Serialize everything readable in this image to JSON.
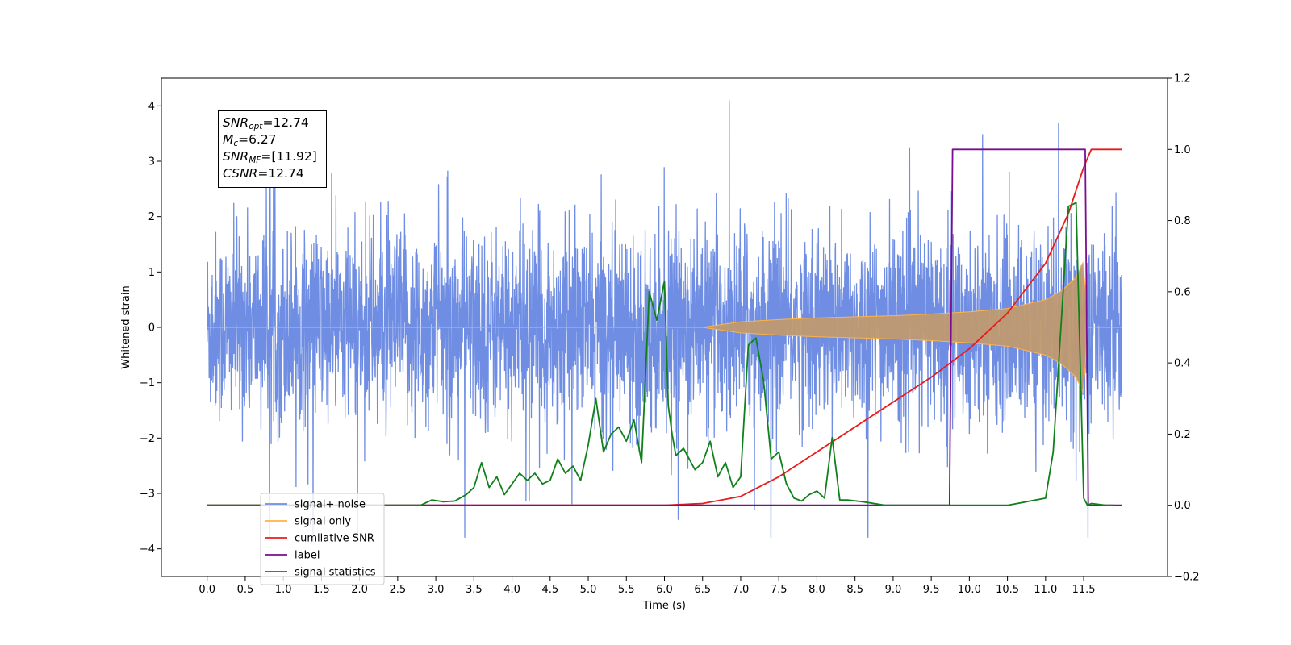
{
  "chart_data": {
    "type": "line",
    "title": "",
    "xlabel": "Time (s)",
    "ylabel": "Whitened strain",
    "y2label": "",
    "xlim": [
      -0.6,
      12.6
    ],
    "ylim": [
      -4.5,
      4.5
    ],
    "y2lim": [
      -0.2,
      1.2
    ],
    "x_ticks": [
      "0.0",
      "0.5",
      "1.0",
      "1.5",
      "2.0",
      "2.5",
      "3.0",
      "3.5",
      "4.0",
      "4.5",
      "5.0",
      "5.5",
      "6.0",
      "6.5",
      "7.0",
      "7.5",
      "8.0",
      "8.5",
      "9.0",
      "9.5",
      "10.0",
      "10.5",
      "11.0",
      "11.5"
    ],
    "y_ticks": [
      "4",
      "3",
      "2",
      "1",
      "0",
      "−1",
      "−2",
      "−3",
      "−4"
    ],
    "y_tick_values": [
      4,
      3,
      2,
      1,
      0,
      -1,
      -2,
      -3,
      -4
    ],
    "y2_ticks": [
      "1.2",
      "1.0",
      "0.8",
      "0.6",
      "0.4",
      "0.2",
      "0.0",
      "−0.2"
    ],
    "y2_tick_values": [
      1.2,
      1.0,
      0.8,
      0.6,
      0.4,
      0.2,
      0.0,
      -0.2
    ],
    "legend_placement": "lower-left",
    "grid": false,
    "series": [
      {
        "name": "signal+ noise",
        "axis": "left",
        "color": "#6f8ee3",
        "description": "noise band approx ±1.5 with spikes to about ±4, x from 0.0 to 12.0",
        "x_range": [
          0.0,
          12.0
        ],
        "y_typical_range": [
          -1.5,
          1.5
        ],
        "y_extremes": [
          -3.8,
          4.1
        ]
      },
      {
        "name": "signal only",
        "axis": "left",
        "color": "#ffb347",
        "description": "chirp near zero growing in amplitude, visible envelope from x≈6.5 to 11.5",
        "envelope_x": [
          6.5,
          7.0,
          7.5,
          8.0,
          8.5,
          9.0,
          9.5,
          10.0,
          10.5,
          11.0,
          11.2,
          11.4,
          11.5,
          11.55
        ],
        "envelope_amplitude": [
          0.0,
          0.1,
          0.14,
          0.17,
          0.19,
          0.21,
          0.24,
          0.28,
          0.34,
          0.5,
          0.65,
          0.9,
          1.2,
          0.0
        ]
      },
      {
        "name": "cumilative SNR",
        "axis": "right",
        "color": "#e81c1c",
        "x": [
          0.0,
          6.0,
          6.5,
          7.0,
          7.5,
          8.0,
          8.5,
          9.0,
          9.5,
          10.0,
          10.5,
          11.0,
          11.3,
          11.5,
          11.6,
          12.0
        ],
        "values": [
          0.0,
          0.0,
          0.005,
          0.025,
          0.08,
          0.15,
          0.22,
          0.29,
          0.36,
          0.44,
          0.54,
          0.68,
          0.82,
          0.95,
          1.0,
          1.0
        ]
      },
      {
        "name": "label",
        "axis": "right",
        "color": "#7b0e8e",
        "x": [
          0.0,
          9.74,
          9.78,
          11.52,
          11.56,
          12.0
        ],
        "values": [
          0.0,
          0.0,
          1.0,
          1.0,
          0.0,
          0.0
        ]
      },
      {
        "name": "signal statistics",
        "axis": "right",
        "color": "#10801a",
        "x": [
          0.0,
          2.8,
          2.95,
          3.1,
          3.25,
          3.4,
          3.5,
          3.6,
          3.7,
          3.8,
          3.9,
          4.0,
          4.1,
          4.2,
          4.3,
          4.4,
          4.5,
          4.6,
          4.7,
          4.8,
          4.9,
          5.0,
          5.1,
          5.2,
          5.3,
          5.4,
          5.5,
          5.6,
          5.7,
          5.8,
          5.9,
          6.0,
          6.05,
          6.1,
          6.15,
          6.25,
          6.4,
          6.5,
          6.6,
          6.7,
          6.8,
          6.9,
          7.0,
          7.1,
          7.2,
          7.3,
          7.4,
          7.5,
          7.6,
          7.7,
          7.8,
          7.9,
          8.0,
          8.1,
          8.2,
          8.3,
          8.4,
          8.6,
          8.9,
          9.2,
          9.5,
          9.8,
          10.5,
          11.0,
          11.1,
          11.3,
          11.4,
          11.5,
          11.55,
          11.6,
          11.8,
          11.9
        ],
        "values": [
          0.0,
          0.0,
          0.015,
          0.01,
          0.012,
          0.03,
          0.05,
          0.12,
          0.05,
          0.08,
          0.03,
          0.06,
          0.09,
          0.07,
          0.09,
          0.06,
          0.07,
          0.13,
          0.09,
          0.11,
          0.07,
          0.17,
          0.3,
          0.15,
          0.2,
          0.22,
          0.18,
          0.24,
          0.12,
          0.6,
          0.52,
          0.63,
          0.28,
          0.2,
          0.14,
          0.16,
          0.1,
          0.12,
          0.18,
          0.08,
          0.12,
          0.05,
          0.08,
          0.45,
          0.47,
          0.35,
          0.13,
          0.15,
          0.06,
          0.02,
          0.012,
          0.03,
          0.04,
          0.02,
          0.19,
          0.015,
          0.015,
          0.01,
          0.0,
          0.0,
          0.0,
          0.0,
          0.0,
          0.02,
          0.15,
          0.84,
          0.85,
          0.02,
          0.0,
          0.005,
          0.0,
          0.0
        ]
      }
    ],
    "annotation": {
      "lines": [
        {
          "prefix": "SNR",
          "sub": "opt",
          "value": "=12.74"
        },
        {
          "prefix": "M",
          "sub": "c",
          "value": "=6.27"
        },
        {
          "prefix": "SNR",
          "sub": "MF",
          "value": "=[11.92]"
        },
        {
          "prefix": "CSNR",
          "sub": "",
          "value": "=12.74"
        }
      ]
    },
    "legend": [
      {
        "label": "signal+ noise",
        "color": "#6f8ee3"
      },
      {
        "label": "signal only",
        "color": "#ffb347"
      },
      {
        "label": "cumilative SNR",
        "color": "#e81c1c"
      },
      {
        "label": "label",
        "color": "#7b0e8e"
      },
      {
        "label": "signal statistics",
        "color": "#10801a"
      }
    ]
  }
}
